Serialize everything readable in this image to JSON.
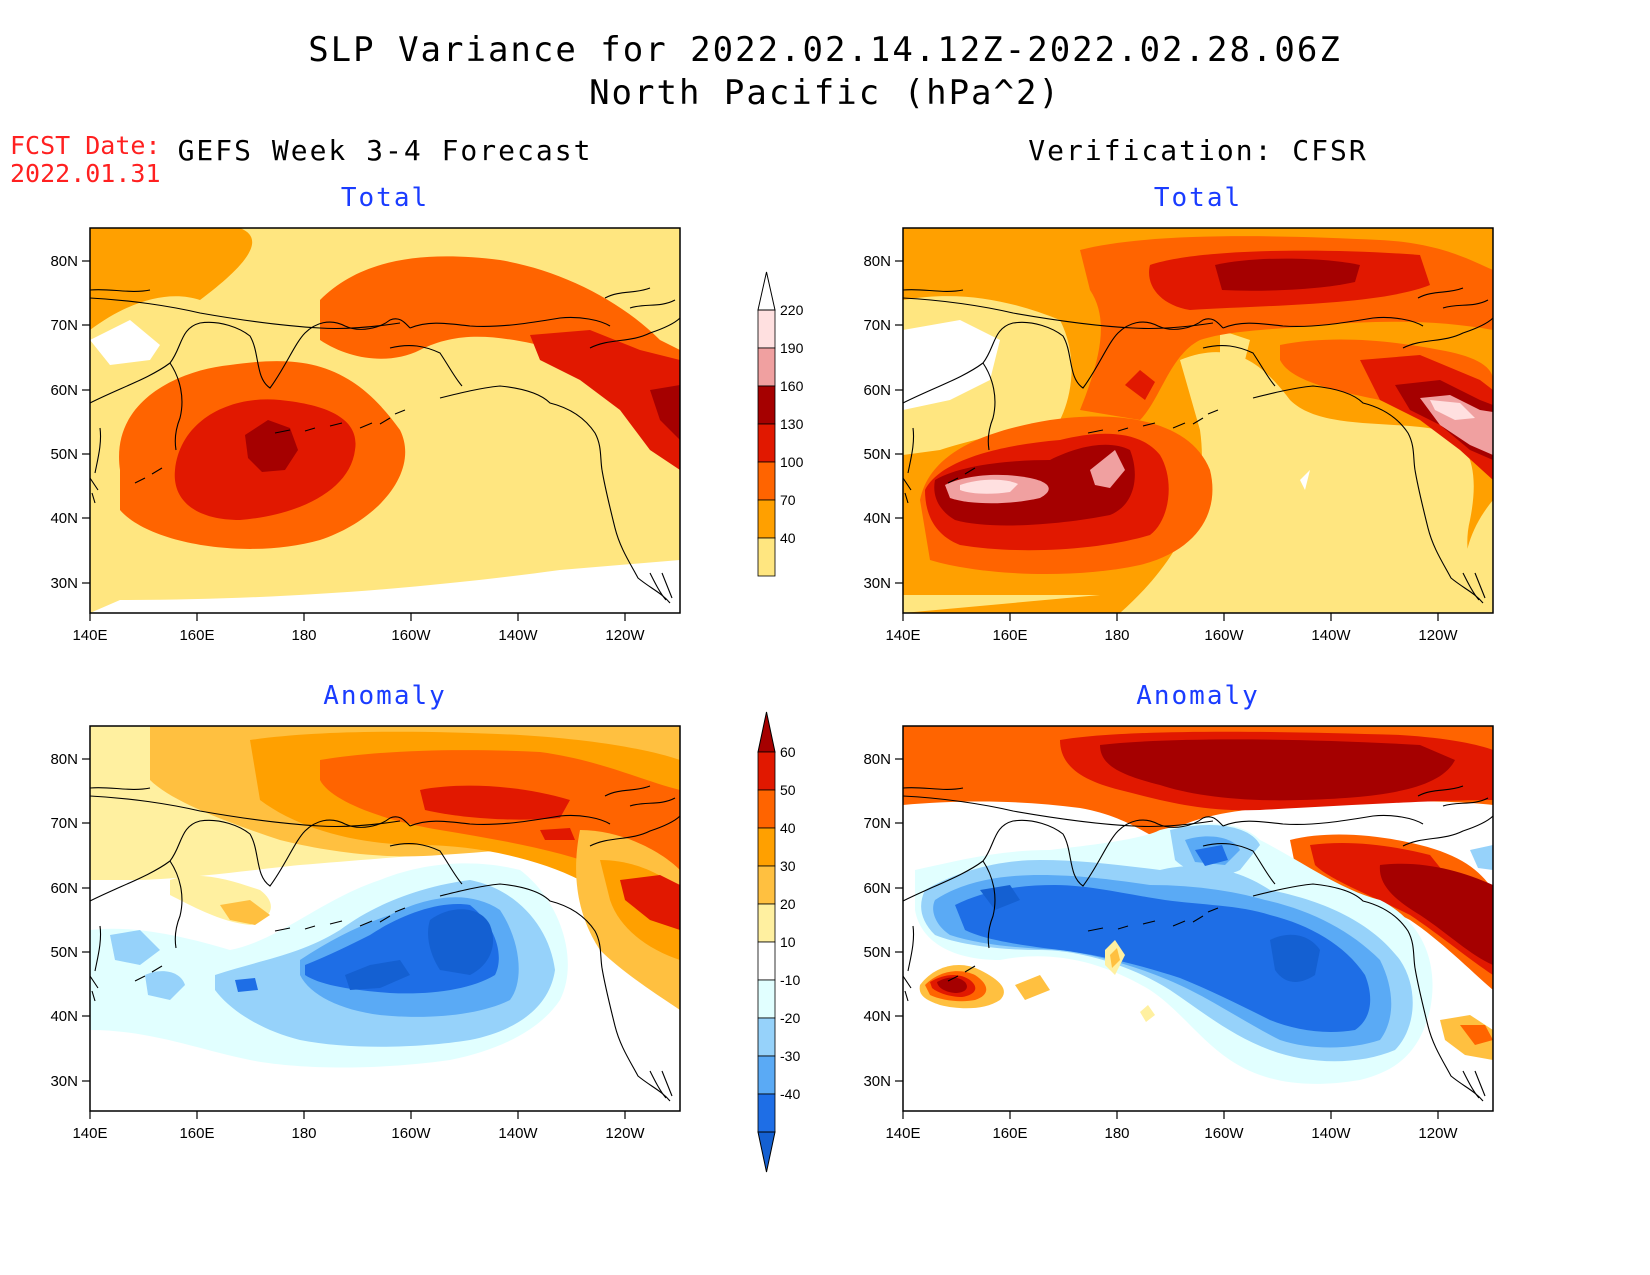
{
  "title_line1": "SLP Variance for 2022.02.14.12Z-2022.02.28.06Z",
  "title_line2": "North Pacific (hPa^2)",
  "fcst_label": "FCST Date:",
  "fcst_value": "2022.01.31",
  "columns": [
    {
      "title": "GEFS Week 3-4 Forecast"
    },
    {
      "title": "Verification: CFSR"
    }
  ],
  "panel_titles": {
    "fc_total": "Total",
    "ver_total": "Total",
    "fc_anom": "Anomaly",
    "ver_anom": "Anomaly"
  },
  "axes": {
    "lon_ticks": [
      "140E",
      "160E",
      "180",
      "160W",
      "140W",
      "120W"
    ],
    "lat_ticks": [
      "30N",
      "40N",
      "50N",
      "60N",
      "70N",
      "80N"
    ]
  },
  "colorbars": {
    "total": {
      "levels": [
        "40",
        "70",
        "100",
        "130",
        "160",
        "190",
        "220"
      ],
      "colors": [
        "#ffe680",
        "#ffa000",
        "#ff6400",
        "#e11800",
        "#a50000",
        "#f0a0a0",
        "#ffe0e0"
      ]
    },
    "anomaly": {
      "levels": [
        "-40",
        "-30",
        "-20",
        "-10",
        "10",
        "20",
        "30",
        "40",
        "50",
        "60"
      ],
      "colors": [
        "#1460d2",
        "#1e6ee6",
        "#5aaaf5",
        "#96d2fa",
        "#e1ffff",
        "#ffffff",
        "#fff0a0",
        "#ffc040",
        "#ffa000",
        "#ff6400",
        "#e11800",
        "#a50000"
      ]
    }
  }
}
